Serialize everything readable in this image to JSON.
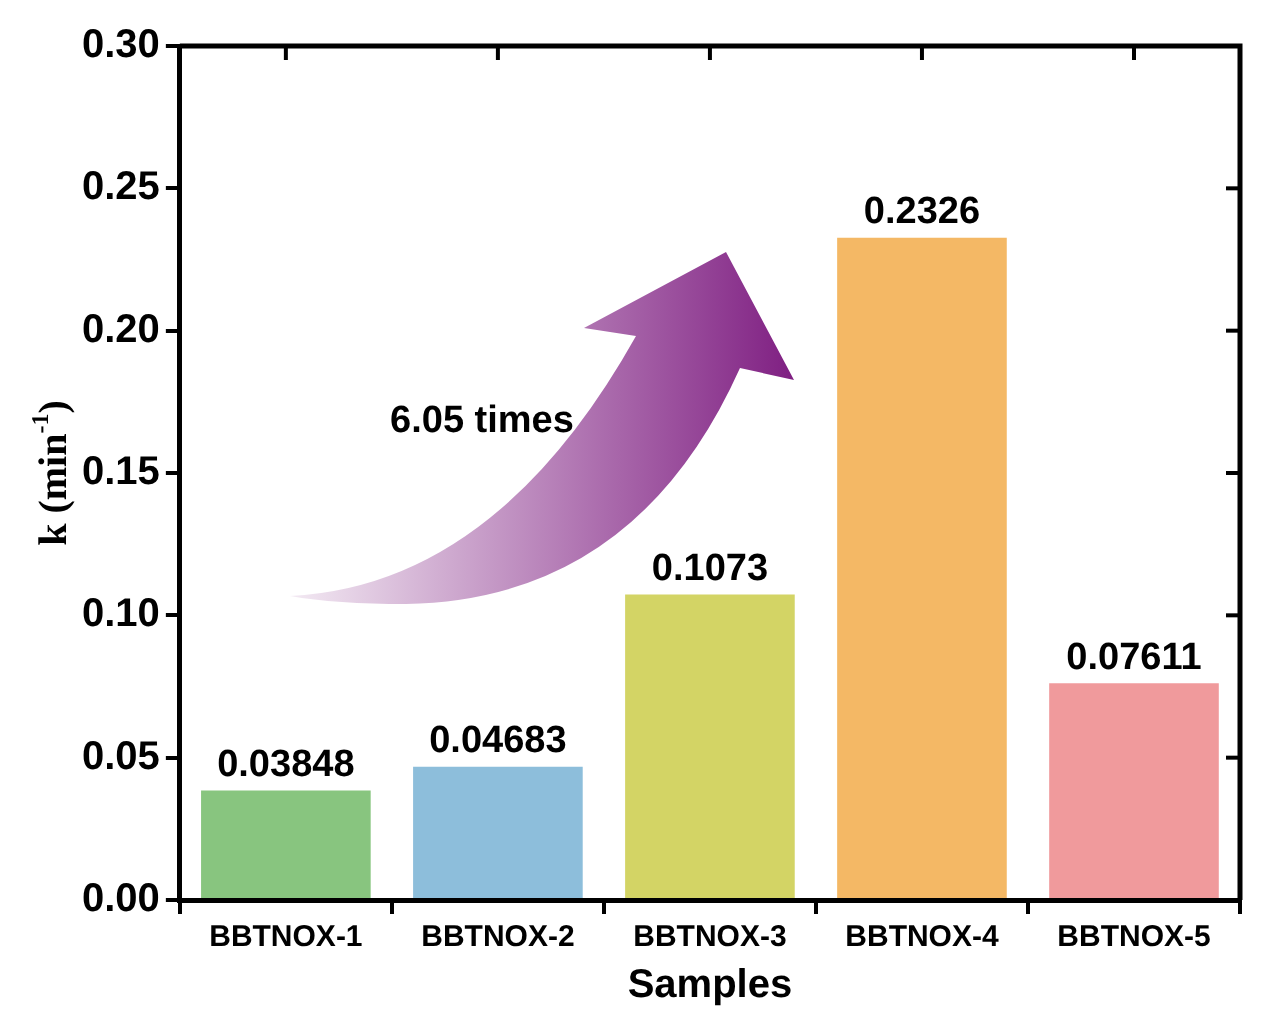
{
  "chart_data": {
    "type": "bar",
    "xlabel": "Samples",
    "ylabel": "k (min$^{-1}$)",
    "categories": [
      "BBTNOX-1",
      "BBTNOX-2",
      "BBTNOX-3",
      "BBTNOX-4",
      "BBTNOX-5"
    ],
    "values": [
      0.03848,
      0.04683,
      0.1073,
      0.2326,
      0.07611
    ],
    "colors": [
      "#88c57f",
      "#8dbedb",
      "#d3d465",
      "#f4b865",
      "#f09a9c"
    ],
    "ylim": [
      0,
      0.3
    ],
    "yticks": [
      {
        "value": 0,
        "label": "0.00"
      },
      {
        "value": 0.05,
        "label": "0.05"
      },
      {
        "value": 0.1,
        "label": "0.10"
      },
      {
        "value": 0.15,
        "label": "0.15"
      },
      {
        "value": 0.2,
        "label": "0.20"
      },
      {
        "value": 0.25,
        "label": "0.25"
      },
      {
        "value": 0.3,
        "label": "0.30"
      }
    ],
    "data_labels": true,
    "grid": false,
    "legend": false,
    "annotations": [
      "6.05 times"
    ]
  }
}
